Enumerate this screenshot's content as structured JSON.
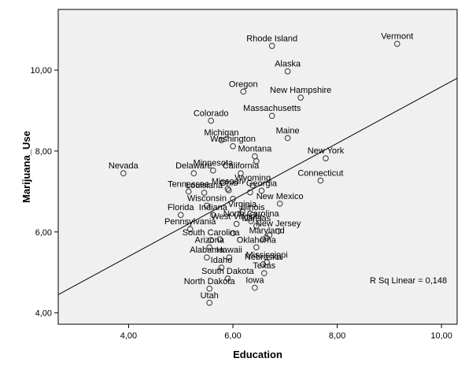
{
  "chart_data": {
    "type": "scatter",
    "xlabel": "Education",
    "ylabel": "Marijuana_Use",
    "xlim": [
      2.65,
      10.3
    ],
    "ylim": [
      3.72,
      11.5
    ],
    "xticks": [
      4,
      6,
      8,
      10
    ],
    "yticks": [
      4,
      6,
      8,
      10
    ],
    "xtick_labels": [
      "4,00",
      "6,00",
      "8,00",
      "10,00"
    ],
    "ytick_labels": [
      "4,00",
      "6,00",
      "8,00",
      "10,00"
    ],
    "grid": false,
    "background_color": "#f0f0f0",
    "point_color": "#333333",
    "fit_line": {
      "x": [
        2.65,
        10.3
      ],
      "y": [
        4.45,
        9.8
      ]
    },
    "r2_label": "R Sq Linear = 0,148",
    "points": [
      {
        "label": "Rhode Island",
        "x": 6.75,
        "y": 10.6
      },
      {
        "label": "Vermont",
        "x": 9.15,
        "y": 10.65
      },
      {
        "label": "Alaska",
        "x": 7.05,
        "y": 9.97
      },
      {
        "label": "Oregon",
        "x": 6.2,
        "y": 9.47
      },
      {
        "label": "New Hampshire",
        "x": 7.3,
        "y": 9.32
      },
      {
        "label": "Massachusetts",
        "x": 6.75,
        "y": 8.87
      },
      {
        "label": "Colorado",
        "x": 5.58,
        "y": 8.75
      },
      {
        "label": "Maine",
        "x": 7.05,
        "y": 8.32
      },
      {
        "label": "Michigan",
        "x": 5.78,
        "y": 8.27
      },
      {
        "label": "Washington",
        "x": 6.0,
        "y": 8.12
      },
      {
        "label": "New York",
        "x": 7.78,
        "y": 7.82
      },
      {
        "label": "Montana",
        "x": 6.42,
        "y": 7.87
      },
      {
        "label": "",
        "x": 6.45,
        "y": 7.75
      },
      {
        "label": "Nevada",
        "x": 3.9,
        "y": 7.45
      },
      {
        "label": "Minnesota",
        "x": 5.62,
        "y": 7.52
      },
      {
        "label": "California",
        "x": 6.15,
        "y": 7.45
      },
      {
        "label": "Delaware",
        "x": 5.25,
        "y": 7.45
      },
      {
        "label": "Connecticut",
        "x": 7.68,
        "y": 7.27
      },
      {
        "label": "Wyoming",
        "x": 6.38,
        "y": 7.15
      },
      {
        "label": "Missouri",
        "x": 5.9,
        "y": 7.07
      },
      {
        "label": "Ohio",
        "x": 5.92,
        "y": 7.03
      },
      {
        "label": "Louisiana",
        "x": 5.45,
        "y": 6.97
      },
      {
        "label": "Georgia",
        "x": 6.55,
        "y": 7.02
      },
      {
        "label": "Tennessee",
        "x": 5.15,
        "y": 7.0
      },
      {
        "label": "",
        "x": 6.33,
        "y": 6.98
      },
      {
        "label": "",
        "x": 6.0,
        "y": 6.82
      },
      {
        "label": "New Mexico",
        "x": 6.9,
        "y": 6.7
      },
      {
        "label": "Wisconsin",
        "x": 5.5,
        "y": 6.65
      },
      {
        "label": "Virginia",
        "x": 6.18,
        "y": 6.5
      },
      {
        "label": "Florida",
        "x": 5.0,
        "y": 6.42
      },
      {
        "label": "Indiana",
        "x": 5.62,
        "y": 6.42
      },
      {
        "label": "Illinois",
        "x": 6.38,
        "y": 6.42
      },
      {
        "label": "North Carolina",
        "x": 6.35,
        "y": 6.27
      },
      {
        "label": "West Virginia",
        "x": 6.07,
        "y": 6.2
      },
      {
        "label": "Kansas",
        "x": 6.45,
        "y": 6.15
      },
      {
        "label": "Pennsylvania",
        "x": 5.18,
        "y": 6.07
      },
      {
        "label": "New Jersey",
        "x": 6.87,
        "y": 6.02
      },
      {
        "label": "",
        "x": 6.0,
        "y": 5.97
      },
      {
        "label": "",
        "x": 6.7,
        "y": 5.92
      },
      {
        "label": "Maryland",
        "x": 6.65,
        "y": 5.85
      },
      {
        "label": "",
        "x": 6.58,
        "y": 5.82
      },
      {
        "label": "South Carolina",
        "x": 5.58,
        "y": 5.8
      },
      {
        "label": "",
        "x": 5.75,
        "y": 5.82
      },
      {
        "label": "Oklahoma",
        "x": 6.45,
        "y": 5.62
      },
      {
        "label": "Arizona",
        "x": 5.55,
        "y": 5.62
      },
      {
        "label": "Alabama",
        "x": 5.5,
        "y": 5.37
      },
      {
        "label": "Hawaii",
        "x": 5.93,
        "y": 5.37
      },
      {
        "label": "Mississippi",
        "x": 6.65,
        "y": 5.25
      },
      {
        "label": "Nebraska",
        "x": 6.58,
        "y": 5.2
      },
      {
        "label": "Idaho",
        "x": 5.78,
        "y": 5.12
      },
      {
        "label": "Texas",
        "x": 6.6,
        "y": 4.98
      },
      {
        "label": "South Dakota",
        "x": 5.9,
        "y": 4.85
      },
      {
        "label": "Iowa",
        "x": 6.42,
        "y": 4.62
      },
      {
        "label": "North Dakota",
        "x": 5.55,
        "y": 4.6
      },
      {
        "label": "Utah",
        "x": 5.55,
        "y": 4.25
      }
    ]
  }
}
